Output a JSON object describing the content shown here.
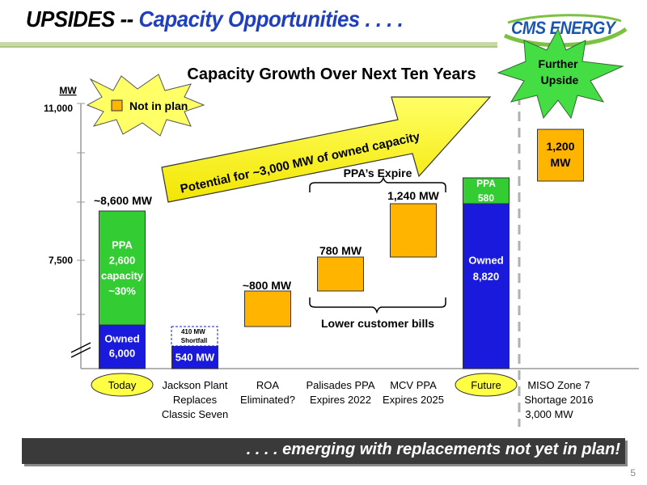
{
  "header": {
    "title_part1": "UPSIDES --",
    "title_part2": "Capacity Opportunities . . . .",
    "logo_text": "CMS ENERGY"
  },
  "chart_data": {
    "type": "bar",
    "title": "Capacity Growth Over Next Ten Years",
    "ylabel": "MW",
    "y_tick_labels": [
      "11,000",
      "7,500"
    ],
    "ylim": [
      5000,
      11000
    ],
    "categories": [
      "Today",
      "Jackson Plant\nReplaces\nClassic Seven",
      "ROA\nEliminated?",
      "Palisades PPA\nExpires 2022",
      "MCV PPA\nExpires 2025",
      "Future",
      "MISO Zone 7\nShortage 2016\n3,000 MW"
    ],
    "highlighted_categories": [
      "Today",
      "Future"
    ],
    "bars": [
      {
        "category": "Today",
        "segments": [
          {
            "label": "Owned\n6,000",
            "value": 6000,
            "color": "#1a1adc"
          },
          {
            "label": "PPA\n2,600\ncapacity\n~30%",
            "value": 2600,
            "color": "#33cc33"
          }
        ],
        "total_label": "~8,600 MW"
      },
      {
        "category": "Jackson Plant",
        "segments": [
          {
            "label": "540 MW",
            "value": 540,
            "color": "#1a1adc"
          }
        ],
        "shortfall_label": "410 MW\nShortfall"
      },
      {
        "category": "ROA",
        "segments": [
          {
            "label": "",
            "value": 800,
            "color": "#ffb400"
          }
        ],
        "total_label": "~800 MW"
      },
      {
        "category": "Palisades",
        "segments": [
          {
            "label": "",
            "value": 780,
            "color": "#ffb400"
          }
        ],
        "total_label": "780 MW"
      },
      {
        "category": "MCV",
        "segments": [
          {
            "label": "",
            "value": 1240,
            "color": "#ffb400"
          }
        ],
        "total_label": "1,240 MW"
      },
      {
        "category": "Future",
        "segments": [
          {
            "label": "Owned\n8,820",
            "value": 8820,
            "color": "#1a1adc"
          },
          {
            "label": "PPA\n580",
            "value": 580,
            "color": "#33cc33"
          }
        ]
      },
      {
        "category": "MISO",
        "segments": [
          {
            "label": "1,200\nMW",
            "value": 1200,
            "color": "#ffb400"
          }
        ]
      }
    ],
    "legend": [
      {
        "label": "Not in plan",
        "color": "#ffb400"
      }
    ],
    "annotations": {
      "arrow": "Potential for ~3,000 MW of owned capacity",
      "ppa_expire": "PPA’s Expire",
      "lower_bills": "Lower customer bills",
      "further_upside": "Further\nUpside"
    }
  },
  "footer": {
    "text": ". . . . emerging with replacements not yet in plan!",
    "page_number": "5"
  }
}
